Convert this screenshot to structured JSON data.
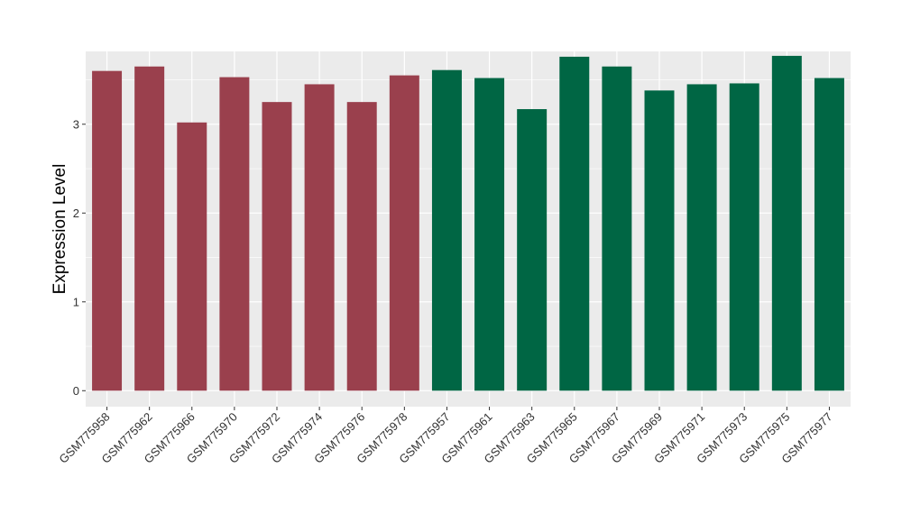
{
  "chart_data": {
    "type": "bar",
    "title": "",
    "xlabel": "",
    "ylabel": "Expression Level",
    "ylim": [
      -0.18,
      3.82
    ],
    "yticks": [
      0,
      1,
      2,
      3
    ],
    "grid": true,
    "legend": "none",
    "colors": {
      "group1": "#9a404d",
      "group2": "#006644",
      "panel": "#ebebeb",
      "gridline": "#ffffff"
    },
    "categories": [
      "GSM775958",
      "GSM775962",
      "GSM775966",
      "GSM775970",
      "GSM775972",
      "GSM775974",
      "GSM775976",
      "GSM775978",
      "GSM775957",
      "GSM775961",
      "GSM775963",
      "GSM775965",
      "GSM775967",
      "GSM775969",
      "GSM775971",
      "GSM775973",
      "GSM775975",
      "GSM775977"
    ],
    "values": [
      3.6,
      3.65,
      3.02,
      3.53,
      3.25,
      3.45,
      3.25,
      3.55,
      3.61,
      3.52,
      3.17,
      3.76,
      3.65,
      3.38,
      3.45,
      3.46,
      3.77,
      3.52
    ],
    "groups": [
      1,
      1,
      1,
      1,
      1,
      1,
      1,
      1,
      2,
      2,
      2,
      2,
      2,
      2,
      2,
      2,
      2,
      2
    ]
  }
}
